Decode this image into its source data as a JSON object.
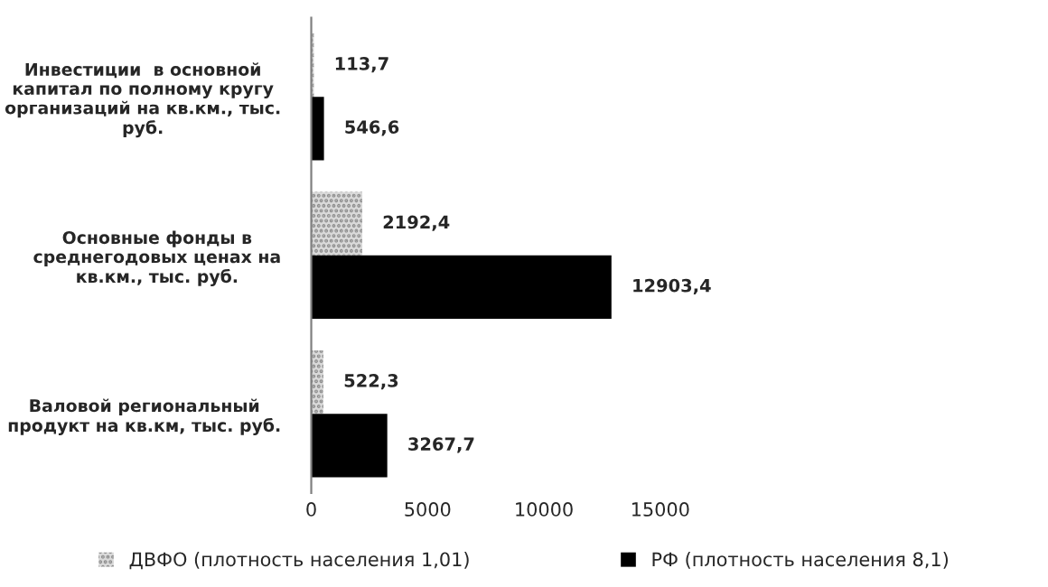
{
  "chart_data": {
    "type": "bar",
    "orientation": "horizontal",
    "categories": [
      "Инвестиции  в основной\nкапитал по полному кругу\nорганизаций на кв.км., тыс.\nруб.",
      "Основные фонды в\nсреднегодовых ценах на\nкв.км., тыс. руб.",
      "Валовой региональный\nпродукт на кв.км, тыс. руб."
    ],
    "series": [
      {
        "name": "ДВФО (плотность населения 1,01)",
        "color": "#d9d9d9",
        "values": [
          113.7,
          2192.4,
          522.3
        ],
        "value_labels": [
          "113,7",
          "2192,4",
          "522,3"
        ]
      },
      {
        "name": "РФ (плотность населения 8,1)",
        "color": "#000000",
        "values": [
          546.6,
          12903.4,
          3267.7
        ],
        "value_labels": [
          "546,6",
          "12903,4",
          "3267,7"
        ]
      }
    ],
    "xlim": [
      0,
      15000
    ],
    "xticks": [
      0,
      5000,
      10000,
      15000
    ],
    "grid": false,
    "legend": "bottom"
  }
}
